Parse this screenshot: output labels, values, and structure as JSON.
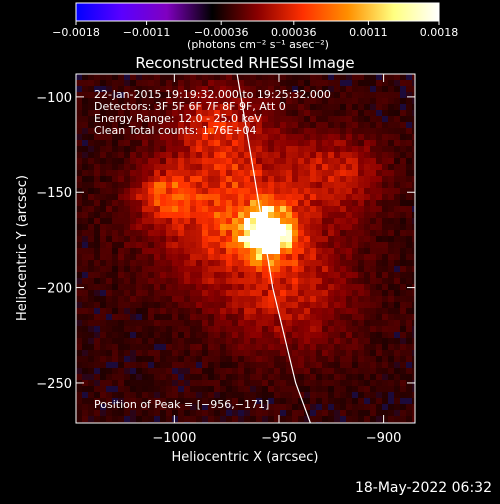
{
  "chart_data": {
    "type": "heatmap",
    "title": "Reconstructed RHESSI Image",
    "xlabel": "Heliocentric X (arcsec)",
    "ylabel": "Heliocentric Y (arcsec)",
    "xlim": [
      -1047,
      -885
    ],
    "ylim": [
      -271,
      -88
    ],
    "x_ticks": [
      -1000,
      -950,
      -900
    ],
    "x_tick_labels": [
      "−1000",
      "−950",
      "−900"
    ],
    "y_ticks": [
      -100,
      -150,
      -200,
      -250
    ],
    "y_tick_labels": [
      "−100",
      "−150",
      "−200",
      "−250"
    ],
    "colorbar": {
      "range": [
        -0.0018,
        0.0018
      ],
      "ticks": [
        -0.0018,
        -0.0011,
        -0.00036,
        0.00036,
        0.0011,
        0.0018
      ],
      "tick_labels": [
        "−0.0018",
        "−0.0011",
        "−0.00036",
        "0.00036",
        "0.0011",
        "0.0018"
      ],
      "unit_label": "(photons cm⁻² s⁻¹ asec⁻²)",
      "colors": [
        "#0000ff",
        "#5a00ff",
        "#8000c0",
        "#000000",
        "#8a0000",
        "#ff3000",
        "#ff9000",
        "#ffff80",
        "#ffffff"
      ]
    },
    "annotations": [
      "22-Jan-2015 19:19:32.000 to 19:25:32.000",
      "Detectors: 3F 5F 6F 7F 8F 9F, Att 0",
      "Energy Range: 12.0 - 25.0 keV",
      "Clean     Total counts: 1.76E+04"
    ],
    "peak_label": "Position of Peak = [−956,−171]",
    "peak": {
      "x": -956,
      "y": -171
    },
    "limb_curve": [
      {
        "x": -970,
        "y": -88
      },
      {
        "x": -962,
        "y": -140
      },
      {
        "x": -953,
        "y": -200
      },
      {
        "x": -942,
        "y": -250
      },
      {
        "x": -935,
        "y": -271
      }
    ],
    "sources": [
      {
        "x": -956,
        "y": -171,
        "amplitude": 1.0,
        "sigma": 8
      },
      {
        "x": -970,
        "y": -160,
        "amplitude": 0.45,
        "sigma": 28
      },
      {
        "x": -1005,
        "y": -152,
        "amplitude": 0.35,
        "sigma": 9
      },
      {
        "x": -980,
        "y": -115,
        "amplitude": 0.25,
        "sigma": 14
      },
      {
        "x": -920,
        "y": -140,
        "amplitude": 0.25,
        "sigma": 14
      },
      {
        "x": -945,
        "y": -205,
        "amplitude": 0.25,
        "sigma": 22
      }
    ],
    "background_level": 0.12,
    "grid": false
  },
  "footer": {
    "timestamp": "18-May-2022 06:32"
  }
}
